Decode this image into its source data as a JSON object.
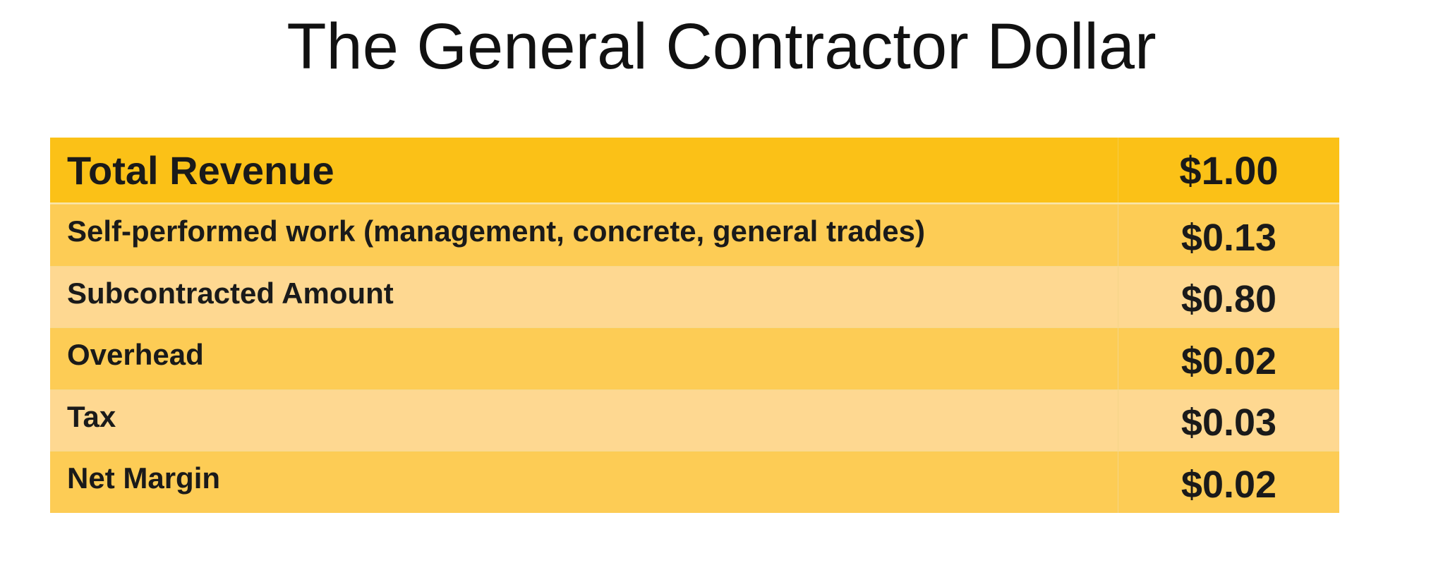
{
  "title": "The General Contractor Dollar",
  "table": {
    "header": {
      "label": "Total Revenue",
      "value": "$1.00"
    },
    "rows": [
      {
        "label": "Self-performed work (management, concrete, general trades)",
        "value": "$0.13"
      },
      {
        "label": "Subcontracted Amount",
        "value": "$0.80"
      },
      {
        "label": "Overhead",
        "value": "$0.02"
      },
      {
        "label": "Tax",
        "value": "$0.03"
      },
      {
        "label": "Net Margin",
        "value": "$0.02"
      }
    ]
  },
  "colors": {
    "header_bg": "#fbc117",
    "row_dark_bg": "#fdcc55",
    "row_light_bg": "#fed891",
    "text": "#1a1a1a"
  }
}
